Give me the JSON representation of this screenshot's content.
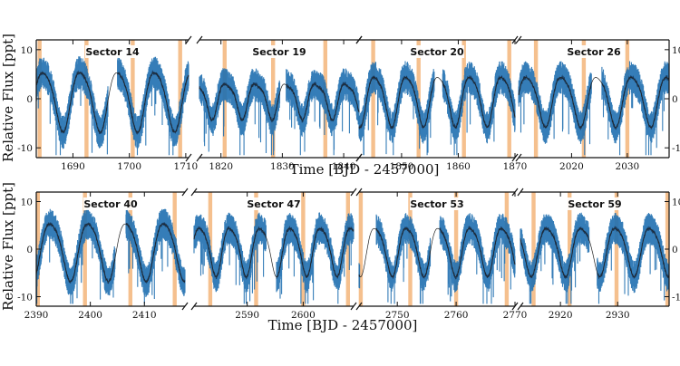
{
  "figure": {
    "xlabel": "Time [BJD - 2457000]",
    "ylabel": "Relative Flux [ppt]"
  },
  "colors": {
    "data": "#1f6fb0",
    "binned": "#1a3a5c",
    "model": "#222222",
    "flare_band": "#f3b57a"
  },
  "chart_data": [
    {
      "type": "line",
      "row": 0,
      "sector": "Sector 14",
      "xlim": [
        1683.5,
        1710.5
      ],
      "ylim": [
        -12,
        12
      ],
      "xticks": [
        1690,
        1700,
        1710
      ],
      "yticks": [
        -10,
        0,
        10
      ],
      "period": 6.6,
      "phase": 1683.2,
      "amplitude": 6,
      "flares": [
        1684.1,
        1692.4,
        1700.6,
        1709.0
      ],
      "gaps": [
        [
          1696.2,
          1697.9
        ]
      ]
    },
    {
      "type": "line",
      "row": 0,
      "sector": "Sector 19",
      "xlim": [
        1816.5,
        1842.5
      ],
      "ylim": [
        -12,
        12
      ],
      "xticks": [
        1820,
        1830,
        1840
      ],
      "yticks": [
        -10,
        0,
        10
      ],
      "period": 4.9,
      "phase": 1814.8,
      "amplitude": 3.5,
      "flares": [
        1820.6,
        1828.5,
        1837.0
      ],
      "gaps": [
        [
          1829.6,
          1830.6
        ]
      ]
    },
    {
      "type": "line",
      "row": 0,
      "sector": "Sector 20",
      "xlim": [
        1842.5,
        1870.0
      ],
      "ylim": [
        -12,
        12
      ],
      "xticks": [
        1850,
        1860,
        1870
      ],
      "yticks": [
        -10,
        0,
        10
      ],
      "period": 5.6,
      "phase": 1844.0,
      "amplitude": 5,
      "flares": [
        1845.0,
        1853.0,
        1861.0,
        1869.0
      ],
      "gaps": [
        [
          1855.8,
          1857.2
        ]
      ]
    },
    {
      "type": "line",
      "row": 0,
      "sector": "Sector 26",
      "xlim": [
        2010.5,
        2037.5
      ],
      "ylim": [
        -12,
        12
      ],
      "xticks": [
        2020,
        2030
      ],
      "yticks": [
        -10,
        0,
        10
      ],
      "period": 6.3,
      "phase": 2010.5,
      "amplitude": 5,
      "flares": [
        2013.6,
        2022.2,
        2030.0
      ],
      "gaps": [
        [
          2023.6,
          2025.4
        ]
      ]
    },
    {
      "type": "line",
      "row": 1,
      "sector": "Sector 40",
      "xlim": [
        2390.0,
        2417.5
      ],
      "ylim": [
        -12,
        12
      ],
      "xticks": [
        2390,
        2400,
        2410
      ],
      "yticks": [
        -10,
        0,
        10
      ],
      "period": 7.0,
      "phase": 2391.0,
      "amplitude": 6,
      "flares": [
        2390.3,
        2399.0,
        2407.4,
        2415.6
      ],
      "gaps": [
        [
          2404.6,
          2406.6
        ]
      ]
    },
    {
      "type": "line",
      "row": 1,
      "sector": "Sector 47",
      "xlim": [
        2580.5,
        2609.0
      ],
      "ylim": [
        -12,
        12
      ],
      "xticks": [
        2590,
        2600
      ],
      "yticks": [
        -10,
        0,
        10
      ],
      "period": 5.4,
      "phase": 2580.3,
      "amplitude": 5,
      "flares": [
        2583.4,
        2591.6,
        2600.0,
        2608.0
      ],
      "gaps": [
        [
          2593.4,
          2595.2
        ]
      ]
    },
    {
      "type": "line",
      "row": 1,
      "sector": "Sector 53",
      "xlim": [
        2743.5,
        2770.0
      ],
      "ylim": [
        -12,
        12
      ],
      "xticks": [
        2750,
        2760,
        2770
      ],
      "yticks": [
        -10,
        0,
        10
      ],
      "period": 5.4,
      "phase": 2745.0,
      "amplitude": 5,
      "flares": [
        2743.8,
        2752.2,
        2760.0,
        2768.6
      ],
      "gaps": [
        [
          2743.6,
          2746.4
        ],
        [
          2755.6,
          2757.2
        ]
      ]
    },
    {
      "type": "line",
      "row": 1,
      "sector": "Sector 59",
      "xlim": [
        2913.0,
        2939.0
      ],
      "ylim": [
        -12,
        12
      ],
      "xticks": [
        2920,
        2930
      ],
      "yticks": [
        -10,
        0,
        10
      ],
      "period": 6.0,
      "phase": 2910.3,
      "amplitude": 5,
      "flares": [
        2915.3,
        2921.6,
        2929.8,
        2938.7
      ],
      "gaps": [
        [
          2925.0,
          2926.4
        ]
      ]
    }
  ]
}
